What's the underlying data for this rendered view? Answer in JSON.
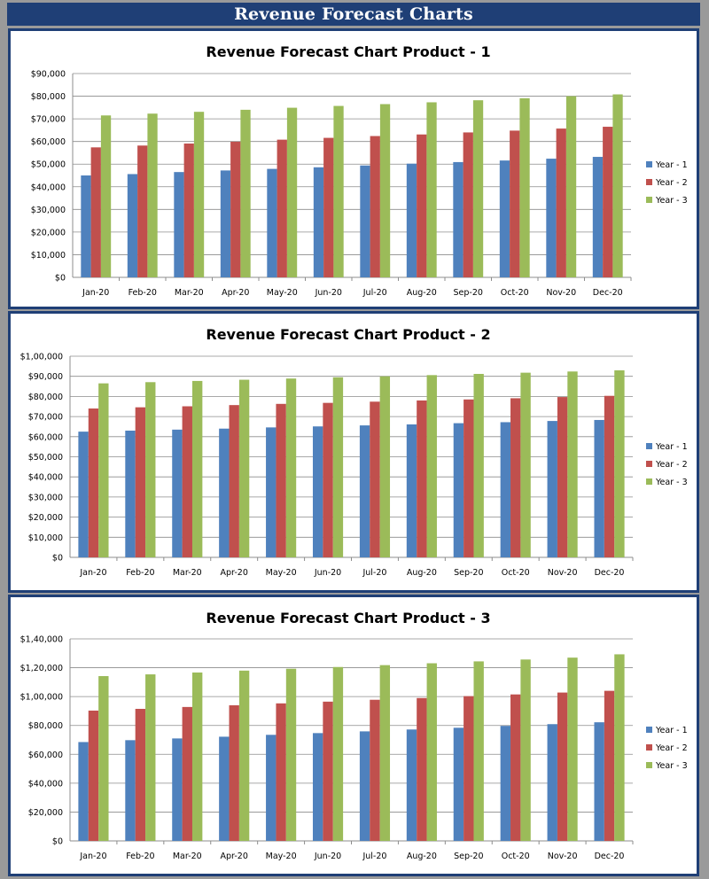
{
  "header": {
    "title": "Revenue Forecast Charts"
  },
  "colors": {
    "header_bg": "#1f3f76",
    "year1": "#4f81bd",
    "year2": "#c0504d",
    "year3": "#9bbb59"
  },
  "chart_data": [
    {
      "type": "bar",
      "title": "Revenue Forecast Chart Product - 1",
      "categories": [
        "Jan-20",
        "Feb-20",
        "Mar-20",
        "Apr-20",
        "May-20",
        "Jun-20",
        "Jul-20",
        "Aug-20",
        "Sep-20",
        "Oct-20",
        "Nov-20",
        "Dec-20"
      ],
      "series": [
        {
          "name": "Year - 1",
          "color": "#4f81bd",
          "values": [
            45000,
            45600,
            46500,
            47200,
            47900,
            48600,
            49400,
            50200,
            50900,
            51600,
            52400,
            53200
          ]
        },
        {
          "name": "Year - 2",
          "color": "#c0504d",
          "values": [
            57400,
            58200,
            59100,
            59900,
            60800,
            61600,
            62400,
            63100,
            64000,
            64800,
            65700,
            66500
          ]
        },
        {
          "name": "Year - 3",
          "color": "#9bbb59",
          "values": [
            71500,
            72300,
            73100,
            74000,
            74900,
            75700,
            76500,
            77300,
            78200,
            79100,
            80000,
            80800
          ]
        }
      ],
      "ylim": [
        0,
        90000
      ],
      "yticks": [
        0,
        10000,
        20000,
        30000,
        40000,
        50000,
        60000,
        70000,
        80000,
        90000
      ],
      "ytick_labels": [
        "$0",
        "$10,000",
        "$20,000",
        "$30,000",
        "$40,000",
        "$50,000",
        "$60,000",
        "$70,000",
        "$80,000",
        "$90,000"
      ],
      "xlabel": "",
      "ylabel": "",
      "grid": true,
      "legend": "right"
    },
    {
      "type": "bar",
      "title": "Revenue Forecast Chart Product - 2",
      "categories": [
        "Jan-20",
        "Feb-20",
        "Mar-20",
        "Apr-20",
        "May-20",
        "Jun-20",
        "Jul-20",
        "Aug-20",
        "Sep-20",
        "Oct-20",
        "Nov-20",
        "Dec-20"
      ],
      "series": [
        {
          "name": "Year - 1",
          "color": "#4f81bd",
          "values": [
            62500,
            63000,
            63500,
            64000,
            64600,
            65100,
            65600,
            66100,
            66700,
            67200,
            67800,
            68300
          ]
        },
        {
          "name": "Year - 2",
          "color": "#c0504d",
          "values": [
            74000,
            74600,
            75100,
            75700,
            76300,
            76800,
            77400,
            78000,
            78500,
            79100,
            79700,
            80300
          ]
        },
        {
          "name": "Year - 3",
          "color": "#9bbb59",
          "values": [
            86500,
            87100,
            87700,
            88300,
            88900,
            89500,
            90000,
            90600,
            91200,
            91800,
            92400,
            93000
          ]
        }
      ],
      "ylim": [
        0,
        100000
      ],
      "yticks": [
        0,
        10000,
        20000,
        30000,
        40000,
        50000,
        60000,
        70000,
        80000,
        90000,
        100000
      ],
      "ytick_labels": [
        "$0",
        "$10,000",
        "$20,000",
        "$30,000",
        "$40,000",
        "$50,000",
        "$60,000",
        "$70,000",
        "$80,000",
        "$90,000",
        "$1,00,000"
      ],
      "xlabel": "",
      "ylabel": "",
      "grid": true,
      "legend": "right"
    },
    {
      "type": "bar",
      "title": "Revenue Forecast Chart Product - 3",
      "categories": [
        "Jan-20",
        "Feb-20",
        "Mar-20",
        "Apr-20",
        "May-20",
        "Jun-20",
        "Jul-20",
        "Aug-20",
        "Sep-20",
        "Oct-20",
        "Nov-20",
        "Dec-20"
      ],
      "series": [
        {
          "name": "Year - 1",
          "color": "#4f81bd",
          "values": [
            68500,
            69800,
            71000,
            72200,
            73500,
            74700,
            75900,
            77200,
            78400,
            79700,
            80900,
            82200
          ]
        },
        {
          "name": "Year - 2",
          "color": "#c0504d",
          "values": [
            90300,
            91500,
            92800,
            94000,
            95300,
            96500,
            97800,
            99000,
            100300,
            101500,
            102800,
            104000
          ]
        },
        {
          "name": "Year - 3",
          "color": "#9bbb59",
          "values": [
            114200,
            115400,
            116700,
            118000,
            119300,
            120500,
            121800,
            123100,
            124400,
            125700,
            127000,
            129300
          ]
        }
      ],
      "ylim": [
        0,
        140000
      ],
      "yticks": [
        0,
        20000,
        40000,
        60000,
        80000,
        100000,
        120000,
        140000
      ],
      "ytick_labels": [
        "$0",
        "$20,000",
        "$40,000",
        "$60,000",
        "$80,000",
        "$1,00,000",
        "$1,20,000",
        "$1,40,000"
      ],
      "xlabel": "",
      "ylabel": "",
      "grid": true,
      "legend": "right"
    }
  ]
}
